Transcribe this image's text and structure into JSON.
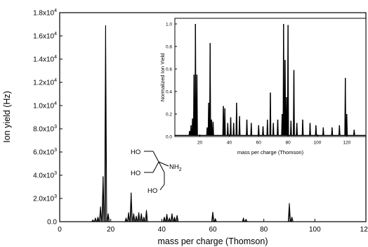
{
  "chart_data": [
    {
      "type": "line",
      "title": "",
      "xlabel": "mass per charge (Thomson)",
      "ylabel": "Ion yield (Hz)",
      "xlim": [
        0,
        120
      ],
      "ylim": [
        0,
        18000
      ],
      "x_ticks": [
        0,
        20,
        40,
        60,
        80,
        100,
        120
      ],
      "x_tick_labels": [
        "0",
        "20",
        "40",
        "60",
        "80",
        "100",
        "120"
      ],
      "y_ticks": [
        0,
        2000,
        4000,
        6000,
        8000,
        10000,
        12000,
        14000,
        16000,
        18000
      ],
      "y_tick_labels": [
        {
          "base": "0.0",
          "exp": ""
        },
        {
          "base": "2.0x10",
          "exp": "3"
        },
        {
          "base": "4.0x10",
          "exp": "3"
        },
        {
          "base": "6.0x10",
          "exp": "3"
        },
        {
          "base": "8.0x10",
          "exp": "3"
        },
        {
          "base": "1.0x10",
          "exp": "4"
        },
        {
          "base": "1.2x10",
          "exp": "4"
        },
        {
          "base": "1.4x10",
          "exp": "4"
        },
        {
          "base": "1.6x10",
          "exp": "4"
        },
        {
          "base": "1.8x10",
          "exp": "4"
        }
      ],
      "series": [
        {
          "peaks": [
            [
              13,
              150
            ],
            [
              14,
              300
            ],
            [
              15,
              400
            ],
            [
              16,
              1300
            ],
            [
              17,
              3900
            ],
            [
              18,
              16900
            ],
            [
              19,
              700
            ],
            [
              26,
              300
            ],
            [
              27,
              800
            ],
            [
              28,
              2500
            ],
            [
              29,
              700
            ],
            [
              30,
              500
            ],
            [
              31,
              800
            ],
            [
              32,
              700
            ],
            [
              33,
              400
            ],
            [
              34,
              1000
            ],
            [
              41,
              400
            ],
            [
              42,
              650
            ],
            [
              43,
              300
            ],
            [
              44,
              700
            ],
            [
              45,
              400
            ],
            [
              46,
              550
            ],
            [
              60,
              850
            ],
            [
              61,
              250
            ],
            [
              72,
              300
            ],
            [
              73,
              200
            ],
            [
              90,
              1600
            ],
            [
              91,
              400
            ]
          ]
        }
      ],
      "annotation": {
        "ho1": "HO",
        "ho2": "HO",
        "ho3": "HO",
        "nh2_base": "NH",
        "nh2_sub": "2"
      }
    },
    {
      "type": "line",
      "title": "",
      "xlabel": "mass per charge (Thomson)",
      "ylabel": "Normalized Ion Yield",
      "xlim": [
        3,
        133
      ],
      "ylim": [
        0,
        1.05
      ],
      "x_ticks": [
        20,
        40,
        60,
        80,
        100,
        120
      ],
      "x_tick_labels": [
        "20",
        "40",
        "60",
        "80",
        "100",
        "120"
      ],
      "y_ticks": [
        0,
        0.2,
        0.4,
        0.6,
        0.8,
        1.0
      ],
      "y_tick_labels": [
        "0.0",
        "0.2",
        "0.4",
        "0.6",
        "0.8",
        "1.0"
      ],
      "series": [
        {
          "peaks": [
            [
              13,
              0.05
            ],
            [
              14,
              0.1
            ],
            [
              15,
              0.16
            ],
            [
              16,
              0.55
            ],
            [
              17,
              1.0
            ],
            [
              18,
              0.55
            ],
            [
              25,
              0.08
            ],
            [
              26,
              0.3
            ],
            [
              27,
              0.83
            ],
            [
              28,
              0.15
            ],
            [
              29,
              0.13
            ],
            [
              36,
              0.27
            ],
            [
              37,
              0.25
            ],
            [
              39,
              0.12
            ],
            [
              41,
              0.17
            ],
            [
              43,
              0.12
            ],
            [
              45,
              0.3
            ],
            [
              47,
              0.18
            ],
            [
              52,
              0.15
            ],
            [
              55,
              0.12
            ],
            [
              60,
              0.1
            ],
            [
              63,
              0.09
            ],
            [
              66,
              0.15
            ],
            [
              68,
              0.39
            ],
            [
              70,
              0.12
            ],
            [
              73,
              0.15
            ],
            [
              76,
              0.2
            ],
            [
              77,
              1.0
            ],
            [
              78,
              0.68
            ],
            [
              79,
              0.35
            ],
            [
              80,
              0.99
            ],
            [
              82,
              0.14
            ],
            [
              84,
              0.59
            ],
            [
              86,
              0.12
            ],
            [
              90,
              0.15
            ],
            [
              95,
              0.12
            ],
            [
              99,
              0.1
            ],
            [
              104,
              0.08
            ],
            [
              110,
              0.08
            ],
            [
              115,
              0.1
            ],
            [
              119,
              0.52
            ],
            [
              120,
              0.2
            ],
            [
              125,
              0.06
            ]
          ]
        }
      ]
    }
  ]
}
